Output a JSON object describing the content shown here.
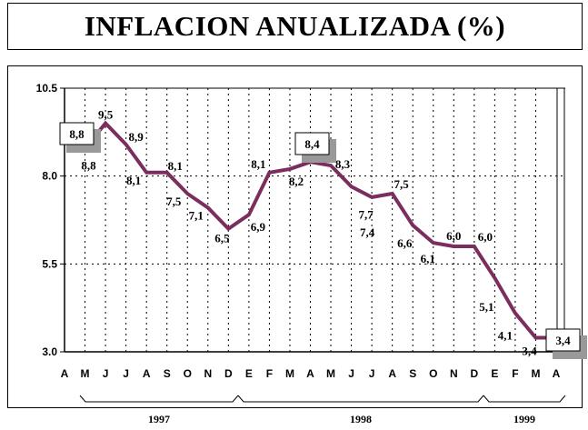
{
  "chart_data": {
    "type": "line",
    "title": "INFLACION ANUALIZADA (%)",
    "xlabel": "",
    "ylabel": "",
    "ylim": [
      3.0,
      10.5
    ],
    "yticks": [
      "10.5",
      "8.0",
      "5.5",
      "3.0"
    ],
    "x_tick_labels": [
      "A",
      "M",
      "J",
      "J",
      "A",
      "S",
      "O",
      "N",
      "D",
      "E",
      "F",
      "M",
      "A",
      "M",
      "J",
      "J",
      "A",
      "S",
      "O",
      "N",
      "D",
      "E",
      "F",
      "M",
      "A"
    ],
    "years": [
      "1997",
      "1998",
      "1999"
    ],
    "series": [
      {
        "name": "Inflación anualizada",
        "color": "#7B2D5E",
        "x_start_index": 1,
        "values": [
          8.8,
          9.5,
          8.9,
          8.1,
          8.1,
          7.5,
          7.1,
          6.5,
          6.9,
          8.1,
          8.2,
          8.4,
          8.3,
          7.7,
          7.4,
          7.5,
          6.6,
          6.1,
          6.0,
          6.0,
          5.1,
          4.1,
          3.4,
          3.4
        ],
        "labels": [
          "8,8",
          "9,5",
          "8,9",
          "8,1",
          "8,1",
          "7,5",
          "7,1",
          "6,5",
          "6,9",
          "8,1",
          "8,2",
          "8,4",
          "8,3",
          "7,7",
          "7,4",
          "7,5",
          "6,6",
          "6,1",
          "6,0",
          "6,0",
          "5,1",
          "4,1",
          "3,4",
          "3,4"
        ]
      }
    ],
    "callouts": [
      {
        "index": 0,
        "label": "8,8"
      },
      {
        "index": 11,
        "label": "8,4"
      },
      {
        "index": 23,
        "label": "3,4"
      }
    ],
    "grid": true,
    "legend": "none"
  }
}
